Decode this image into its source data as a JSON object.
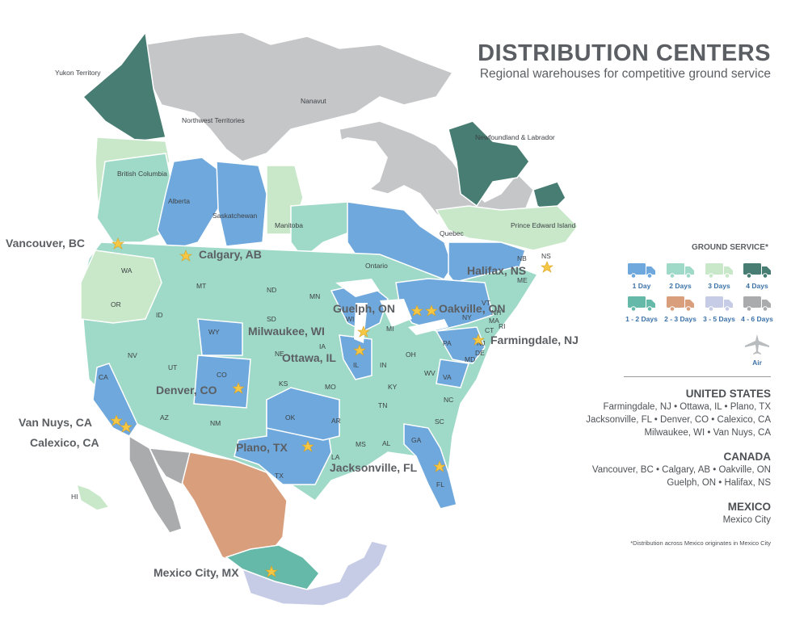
{
  "header": {
    "title": "DISTRIBUTION CENTERS",
    "subtitle": "Regional warehouses for competitive ground service"
  },
  "legend": {
    "title": "GROUND SERVICE*",
    "items": [
      {
        "label": "1 Day",
        "color": "#6fa8dc"
      },
      {
        "label": "2 Days",
        "color": "#9fd9c7"
      },
      {
        "label": "3 Days",
        "color": "#c8e8c9"
      },
      {
        "label": "4 Days",
        "color": "#477d72"
      },
      {
        "label": "1 - 2 Days",
        "color": "#65b9a9"
      },
      {
        "label": "2 - 3 Days",
        "color": "#d99f7d"
      },
      {
        "label": "3 - 5 Days",
        "color": "#c6cce6"
      },
      {
        "label": "4 - 6 Days",
        "color": "#a9abad"
      },
      {
        "label": "Air",
        "color": "#b9bcbe"
      }
    ]
  },
  "locations": {
    "united_states": {
      "heading": "UNITED STATES",
      "lines": [
        "Farmingdale, NJ • Ottawa, IL • Plano, TX",
        "Jacksonville, FL • Denver, CO •  Calexico, CA",
        "Milwaukee, WI  •  Van Nuys, CA"
      ]
    },
    "canada": {
      "heading": "CANADA",
      "lines": [
        "Vancouver, BC • Calgary, AB • Oakville, ON",
        "Guelph, ON • Halifax, NS"
      ]
    },
    "mexico": {
      "heading": "MEXICO",
      "lines": [
        "Mexico City"
      ]
    },
    "footnote": "*Distribution across Mexico originates in Mexico City"
  },
  "map": {
    "cities": [
      "Vancouver, BC",
      "Calgary, AB",
      "Halifax, NS",
      "Guelph, ON",
      "Oakville, ON",
      "Milwaukee, WI",
      "Farmingdale, NJ",
      "Ottawa, IL",
      "Denver, CO",
      "Van Nuys, CA",
      "Calexico, CA",
      "Plano, TX",
      "Jacksonville, FL",
      "Mexico City, MX"
    ],
    "regions": [
      "Yukon Territory",
      "Northwest Territories",
      "Nanavut",
      "Newfoundland & Labrador",
      "British Columbia",
      "Alberta",
      "Saskatchewan",
      "Manitoba",
      "Ontario",
      "Quebec",
      "Prince Edward Island",
      "NB",
      "NS",
      "ME",
      "WA",
      "OR",
      "ID",
      "MT",
      "ND",
      "MN",
      "SD",
      "WY",
      "NE",
      "IA",
      "WI",
      "MI",
      "NY",
      "VT",
      "NH",
      "MA",
      "CT",
      "RI",
      "PA",
      "NJ",
      "DE",
      "MD",
      "VA",
      "WV",
      "OH",
      "IN",
      "IL",
      "KY",
      "TN",
      "NC",
      "SC",
      "GA",
      "FL",
      "AL",
      "MS",
      "LA",
      "AR",
      "MO",
      "KS",
      "OK",
      "TX",
      "NM",
      "AZ",
      "CO",
      "UT",
      "NV",
      "CA",
      "HI"
    ]
  }
}
